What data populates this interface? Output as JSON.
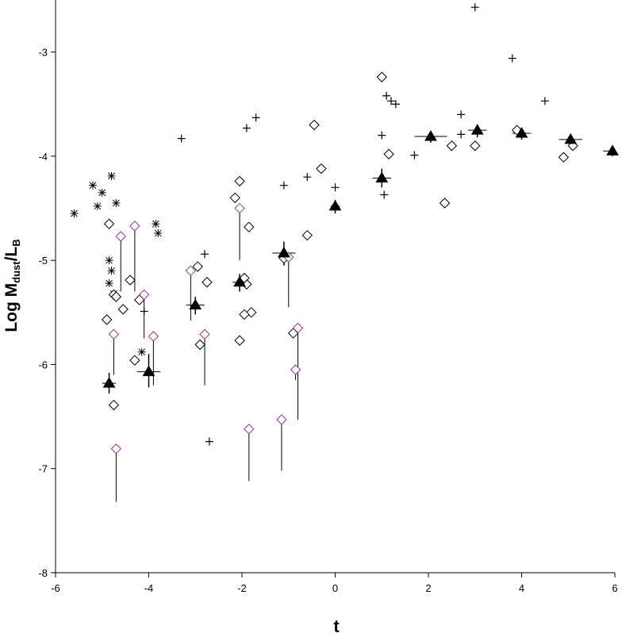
{
  "chart_data": {
    "type": "scatter",
    "title": "",
    "xlabel": "t",
    "ylabel": {
      "main": "Log M",
      "sub1": "dust",
      "mid": "/L",
      "sub2": "B"
    },
    "xlim": [
      -6,
      6
    ],
    "ylim": [
      -8,
      -2.5
    ],
    "x_ticks": [
      -6,
      -4,
      -2,
      0,
      2,
      4,
      6
    ],
    "y_ticks": [
      -8,
      -7,
      -6,
      -5,
      -4,
      -3
    ],
    "x_tick_labels": [
      "-6",
      "-4",
      "-2",
      "0",
      "2",
      "4",
      "6"
    ],
    "y_tick_labels": [
      "-8",
      "-7",
      "-6",
      "-5",
      "-4",
      "-3"
    ],
    "grid": false,
    "legend": "none",
    "colors": {
      "black": "#000000",
      "limit": "#993399"
    },
    "series": [
      {
        "marker": "plus",
        "points": [
          [
            3.0,
            -2.57
          ],
          [
            3.8,
            -3.06
          ],
          [
            4.5,
            -3.47
          ],
          [
            1.1,
            -3.42
          ],
          [
            1.2,
            -3.47
          ],
          [
            1.3,
            -3.5
          ],
          [
            -1.7,
            -3.63
          ],
          [
            -1.9,
            -3.73
          ],
          [
            -3.3,
            -3.83
          ],
          [
            2.7,
            -3.6
          ],
          [
            2.7,
            -3.79
          ],
          [
            1.0,
            -3.8
          ],
          [
            1.7,
            -3.99
          ],
          [
            -0.6,
            -4.2
          ],
          [
            -1.1,
            -4.28
          ],
          [
            0.0,
            -4.3
          ],
          [
            1.05,
            -4.37
          ],
          [
            -2.8,
            -4.94
          ],
          [
            -4.1,
            -5.49
          ],
          [
            -2.7,
            -6.74
          ]
        ]
      },
      {
        "marker": "asterisk",
        "points": [
          [
            -5.6,
            -4.55
          ],
          [
            -5.2,
            -4.28
          ],
          [
            -5.1,
            -4.48
          ],
          [
            -5.0,
            -4.35
          ],
          [
            -4.8,
            -4.19
          ],
          [
            -4.7,
            -4.45
          ],
          [
            -3.85,
            -4.65
          ],
          [
            -3.8,
            -4.74
          ],
          [
            -4.85,
            -5.0
          ],
          [
            -4.8,
            -5.1
          ],
          [
            -4.85,
            -5.22
          ],
          [
            -4.75,
            -5.32
          ],
          [
            -4.15,
            -5.88
          ]
        ]
      },
      {
        "marker": "diamond",
        "points": [
          [
            1.0,
            -3.24
          ],
          [
            -0.45,
            -3.7
          ],
          [
            3.9,
            -3.75
          ],
          [
            2.5,
            -3.9
          ],
          [
            3.0,
            -3.9
          ],
          [
            5.1,
            -3.9
          ],
          [
            1.15,
            -3.98
          ],
          [
            4.9,
            -4.01
          ],
          [
            -0.3,
            -4.12
          ],
          [
            -2.05,
            -4.24
          ],
          [
            -2.15,
            -4.4
          ],
          [
            2.35,
            -4.45
          ],
          [
            -4.85,
            -4.65
          ],
          [
            -1.85,
            -4.68
          ],
          [
            -0.6,
            -4.76
          ],
          [
            -1.1,
            -4.98
          ],
          [
            -2.95,
            -5.06
          ],
          [
            -4.4,
            -5.19
          ],
          [
            -2.75,
            -5.21
          ],
          [
            -1.9,
            -5.23
          ],
          [
            -1.95,
            -5.17
          ],
          [
            -4.75,
            -5.33
          ],
          [
            -4.7,
            -5.35
          ],
          [
            -4.2,
            -5.38
          ],
          [
            -4.55,
            -5.47
          ],
          [
            -1.8,
            -5.5
          ],
          [
            -1.95,
            -5.52
          ],
          [
            -4.9,
            -5.57
          ],
          [
            -0.9,
            -5.7
          ],
          [
            -2.9,
            -5.81
          ],
          [
            -2.05,
            -5.77
          ],
          [
            -4.3,
            -5.96
          ],
          [
            -4.75,
            -6.39
          ]
        ]
      },
      {
        "marker": "diamond-limit",
        "points": [
          [
            -4.6,
            -4.77
          ],
          [
            -4.3,
            -4.67
          ],
          [
            -2.05,
            -4.5
          ],
          [
            -3.1,
            -5.1
          ],
          [
            -1.0,
            -4.97
          ],
          [
            -4.1,
            -5.33
          ],
          [
            -4.75,
            -5.71
          ],
          [
            -3.9,
            -5.73
          ],
          [
            -2.8,
            -5.71
          ],
          [
            -0.8,
            -5.65
          ],
          [
            -0.85,
            -6.05
          ],
          [
            -1.15,
            -6.53
          ],
          [
            -1.85,
            -6.62
          ],
          [
            -4.7,
            -6.81
          ]
        ],
        "limit_lines": [
          [
            -4.6,
            -4.77,
            -5.3
          ],
          [
            -4.3,
            -4.67,
            -5.3
          ],
          [
            -2.05,
            -4.5,
            -5.0
          ],
          [
            -3.1,
            -5.1,
            -5.58
          ],
          [
            -1.0,
            -4.97,
            -5.45
          ],
          [
            -4.1,
            -5.33,
            -5.75
          ],
          [
            -4.75,
            -5.71,
            -6.1
          ],
          [
            -3.9,
            -5.73,
            -6.2
          ],
          [
            -2.8,
            -5.71,
            -6.2
          ],
          [
            -0.8,
            -5.65,
            -6.53
          ],
          [
            -0.85,
            -6.05,
            -6.15
          ],
          [
            -1.15,
            -6.53,
            -7.02
          ],
          [
            -1.85,
            -6.62,
            -7.12
          ],
          [
            -4.7,
            -6.81,
            -7.32
          ]
        ]
      },
      {
        "marker": "triangle",
        "points": [
          [
            -4.85,
            -6.18
          ],
          [
            -4.0,
            -6.07
          ],
          [
            -3.0,
            -5.43
          ],
          [
            -2.05,
            -5.21
          ],
          [
            -1.1,
            -4.93
          ],
          [
            0.0,
            -4.48
          ],
          [
            1.0,
            -4.21
          ],
          [
            2.05,
            -3.81
          ],
          [
            3.05,
            -3.75
          ],
          [
            4.0,
            -3.78
          ],
          [
            5.05,
            -3.84
          ],
          [
            5.95,
            -3.95
          ]
        ],
        "xerr": [
          [
            -5.0,
            -4.7,
            -6.18
          ],
          [
            -4.25,
            -3.75,
            -6.07
          ],
          [
            -3.2,
            -2.8,
            -5.43
          ],
          [
            -2.2,
            -1.9,
            -5.21
          ],
          [
            -1.35,
            -0.85,
            -4.93
          ],
          [
            -0.1,
            0.1,
            -4.48
          ],
          [
            0.8,
            1.2,
            -4.21
          ],
          [
            1.7,
            2.4,
            -3.81
          ],
          [
            2.85,
            3.25,
            -3.75
          ],
          [
            3.8,
            4.2,
            -3.78
          ],
          [
            4.8,
            5.3,
            -3.84
          ],
          [
            5.75,
            6.0,
            -3.95
          ]
        ],
        "yerr": [
          [
            -4.85,
            -6.08,
            -6.28
          ],
          [
            -4.0,
            -5.9,
            -6.22
          ],
          [
            -3.0,
            -5.35,
            -5.52
          ],
          [
            -2.05,
            -5.13,
            -5.3
          ],
          [
            -1.1,
            -4.82,
            -5.05
          ],
          [
            0.0,
            -4.42,
            -4.55
          ],
          [
            1.0,
            -4.12,
            -4.3
          ],
          [
            2.05,
            -3.77,
            -3.87
          ],
          [
            3.05,
            -3.7,
            -3.82
          ],
          [
            4.0,
            -3.74,
            -3.84
          ],
          [
            5.05,
            -3.8,
            -3.9
          ],
          [
            5.95,
            -3.9,
            -4.0
          ]
        ]
      }
    ]
  }
}
